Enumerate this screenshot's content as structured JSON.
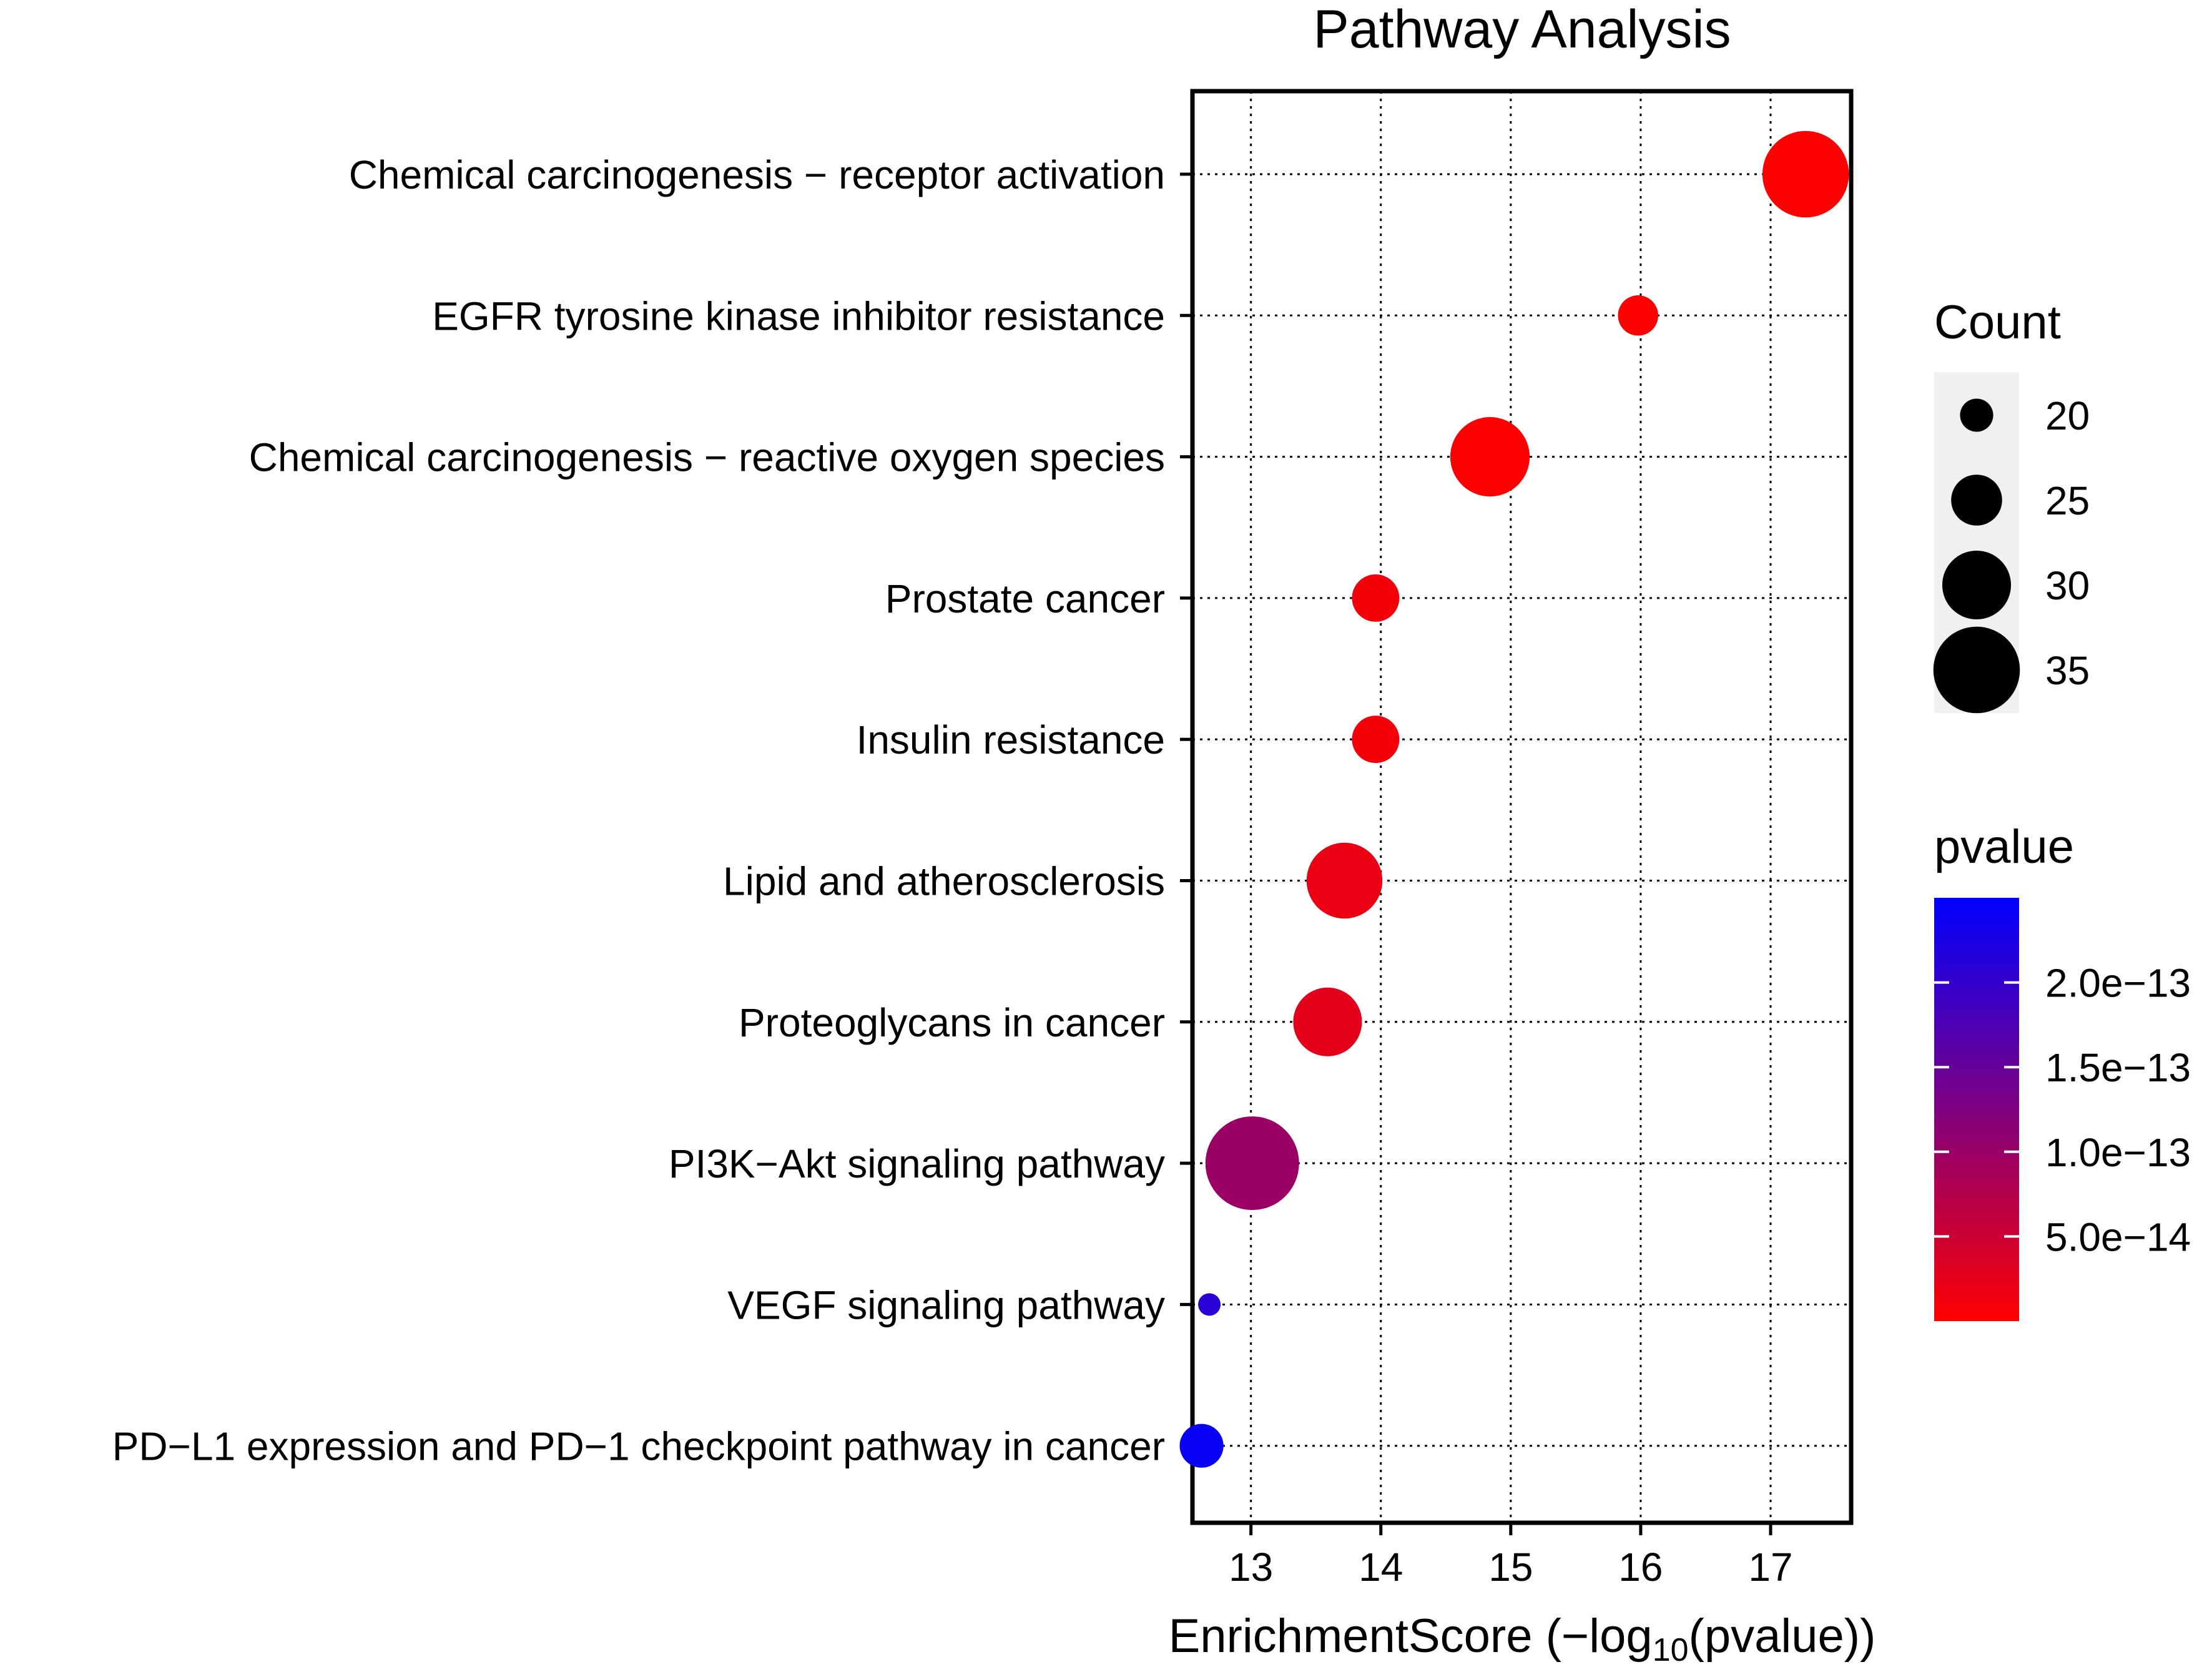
{
  "chart_data": {
    "type": "scatter",
    "title": "Pathway Analysis",
    "xlabel": "EnrichmentScore (−log10(pvalue))",
    "xlabel_parts": {
      "pre": "EnrichmentScore (−log",
      "sub": "10",
      "post": "(pvalue))"
    },
    "ylabel": "",
    "xlim": [
      12.55,
      17.62
    ],
    "xticks": [
      13,
      14,
      15,
      16,
      17
    ],
    "xtick_labels": [
      "13",
      "14",
      "15",
      "16",
      "17"
    ],
    "grid": true,
    "legend_position": "right",
    "points": [
      {
        "label": "Chemical carcinogenesis − receptor activation",
        "x": 17.27,
        "count": 35,
        "pvalue": 5.4e-18
      },
      {
        "label": "EGFR tyrosine kinase inhibitor resistance",
        "x": 15.98,
        "count": 22,
        "pvalue": 1.05e-16
      },
      {
        "label": "Chemical carcinogenesis − reactive oxygen species",
        "x": 14.84,
        "count": 33,
        "pvalue": 1.45e-15
      },
      {
        "label": "Prostate cancer",
        "x": 13.96,
        "count": 24,
        "pvalue": 1.1e-14
      },
      {
        "label": "Insulin resistance",
        "x": 13.96,
        "count": 24,
        "pvalue": 1.1e-14
      },
      {
        "label": "Lipid and atherosclerosis",
        "x": 13.72,
        "count": 32,
        "pvalue": 1.9e-14
      },
      {
        "label": "Proteoglycans in cancer",
        "x": 13.59,
        "count": 30,
        "pvalue": 2.6e-14
      },
      {
        "label": "PI3K−Akt signaling pathway",
        "x": 13.01,
        "count": 37,
        "pvalue": 9.8e-14
      },
      {
        "label": "VEGF signaling pathway",
        "x": 12.68,
        "count": 17,
        "pvalue": 2.1e-13
      },
      {
        "label": "PD−L1 expression and PD−1 checkpoint pathway in cancer",
        "x": 12.62,
        "count": 23,
        "pvalue": 2.4e-13
      }
    ],
    "size_legend": {
      "title": "Count",
      "values": [
        20,
        25,
        30,
        35
      ],
      "labels": [
        "20",
        "25",
        "30",
        "35"
      ]
    },
    "color_legend": {
      "title": "pvalue",
      "min": 5e-18,
      "max": 2.5e-13,
      "ticks": [
        2e-13,
        1.5e-13,
        1e-13,
        5e-14
      ],
      "tick_labels": [
        "2.0e−13",
        "1.5e−13",
        "1.0e−13",
        "5.0e−14"
      ],
      "low_color": "#ff0000",
      "high_color": "#0000ff"
    },
    "colors": {
      "grid": "#000000",
      "frame": "#000000",
      "legend_bg": "#f0f0f0"
    }
  }
}
